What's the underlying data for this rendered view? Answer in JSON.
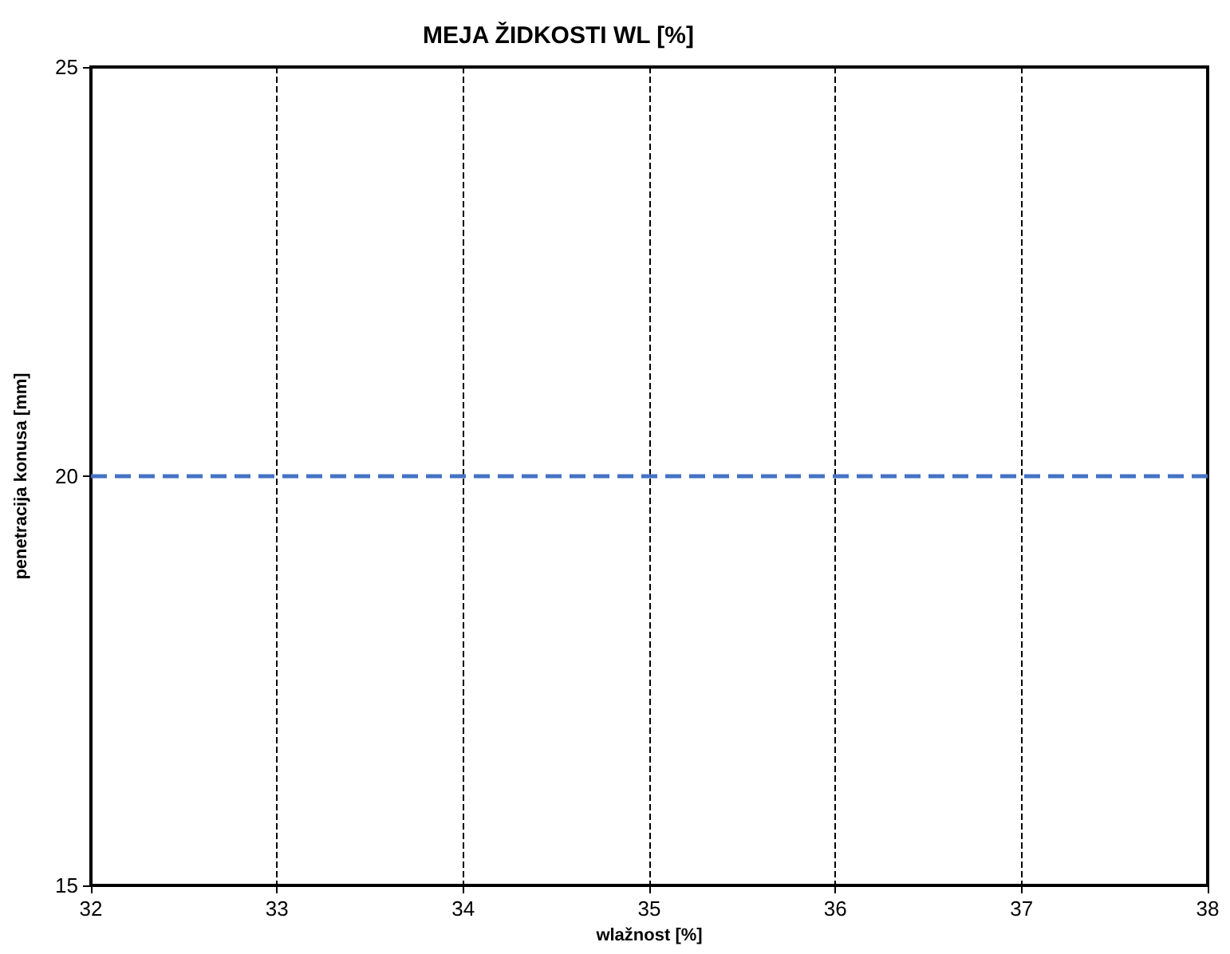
{
  "chart_data": {
    "type": "line",
    "title": "MEJA ŽIDKOSTI WL [%]",
    "xlabel": "wlažnost [%]",
    "ylabel": "penetracija konusa [mm]",
    "xlim": [
      32,
      38
    ],
    "xticks": [
      32,
      33,
      34,
      35,
      36,
      37,
      38
    ],
    "ylim": [
      15,
      25
    ],
    "yticks": [
      15,
      20,
      25
    ],
    "grid": "x",
    "ref_lines": [
      {
        "axis": "y",
        "value": 20,
        "color": "#4472c4",
        "line_style": "dashed"
      }
    ]
  }
}
